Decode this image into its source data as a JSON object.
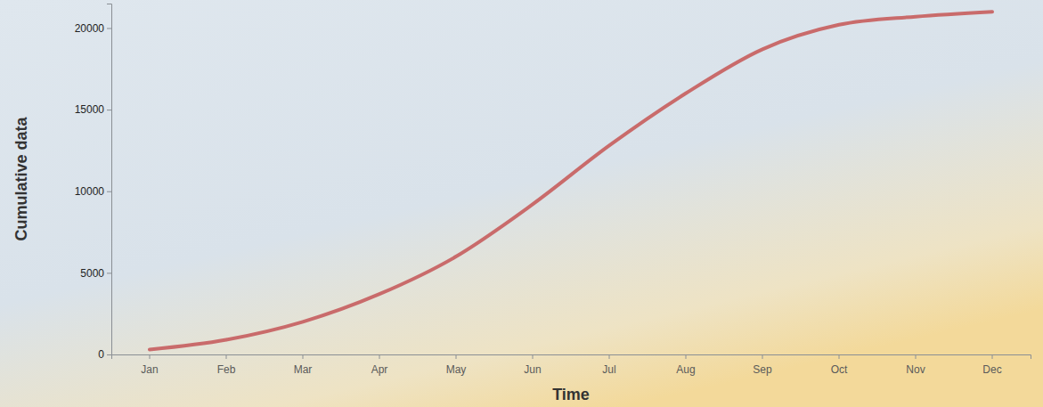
{
  "chart_data": {
    "type": "line",
    "x_label": "Time",
    "y_label": "Cumulative data",
    "categories": [
      "Jan",
      "Feb",
      "Mar",
      "Apr",
      "May",
      "Jun",
      "Jul",
      "Aug",
      "Sep",
      "Oct",
      "Nov",
      "Dec"
    ],
    "values": [
      300,
      900,
      2000,
      3700,
      6000,
      9200,
      12800,
      16000,
      18700,
      20200,
      20700,
      21000
    ],
    "color": "#c96b6b",
    "ylim": [
      0,
      21500
    ],
    "yticks": [
      0,
      5000,
      10000,
      15000,
      20000
    ],
    "grid": false
  }
}
